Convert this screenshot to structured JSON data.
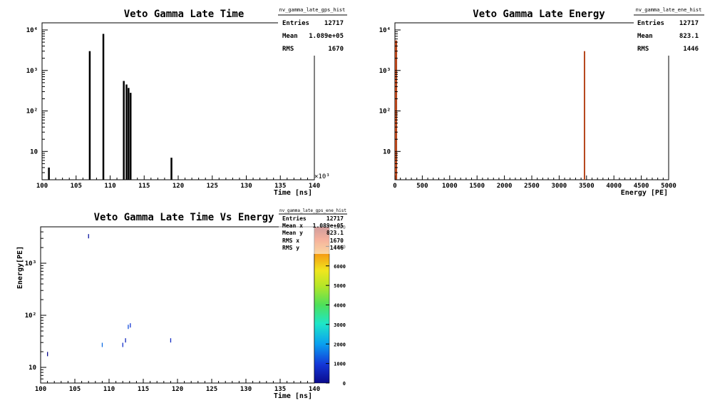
{
  "chart_data": [
    {
      "id": "p1",
      "type": "bar",
      "name": "nv_gamma_late_gps_hist",
      "title": "Veto Gamma Late Time",
      "xlabel": "Time [ns]",
      "x_exponent_label": "×10³",
      "ylabel": "",
      "xlim": [
        100,
        140
      ],
      "ylim": [
        2,
        15000
      ],
      "yscale": "log",
      "xticks": [
        "100",
        "105",
        "110",
        "115",
        "120",
        "125",
        "130",
        "135",
        "140"
      ],
      "yticks": [
        "10",
        "10²",
        "10³",
        "10⁴"
      ],
      "bar_width": 0.25,
      "bar_color": "#000000",
      "values": [
        {
          "x": 101.0,
          "y": 4
        },
        {
          "x": 107.0,
          "y": 3000
        },
        {
          "x": 109.0,
          "y": 8000
        },
        {
          "x": 112.0,
          "y": 550
        },
        {
          "x": 112.4,
          "y": 450
        },
        {
          "x": 112.7,
          "y": 370
        },
        {
          "x": 113.0,
          "y": 280
        },
        {
          "x": 119.0,
          "y": 7
        }
      ],
      "stats": {
        "title": "nv_gamma_late_gps_hist",
        "rows": [
          {
            "label": "Entries",
            "value": "12717"
          },
          {
            "label": "Mean",
            "value": "1.089e+05"
          },
          {
            "label": "RMS",
            "value": "1670"
          }
        ]
      }
    },
    {
      "id": "p2",
      "type": "bar",
      "name": "nv_gamma_late_ene_hist",
      "title": "Veto Gamma Late Energy",
      "xlabel": "Energy [PE]",
      "ylabel": "",
      "xlim": [
        0,
        5000
      ],
      "ylim": [
        2,
        15000
      ],
      "yscale": "log",
      "xticks": [
        "0",
        "500",
        "1000",
        "1500",
        "2000",
        "2500",
        "3000",
        "3500",
        "4000",
        "4500",
        "5000"
      ],
      "yticks": [
        "10",
        "10²",
        "10³",
        "10⁴"
      ],
      "bar_color": "#b5451b",
      "values": [
        {
          "x0": 0,
          "x1": 40,
          "y": 5500
        },
        {
          "x0": 3450,
          "x1": 3470,
          "y": 3000
        }
      ],
      "stats": {
        "title": "nv_gamma_late_ene_hist",
        "rows": [
          {
            "label": "Entries",
            "value": "12717"
          },
          {
            "label": "Mean",
            "value": "823.1"
          },
          {
            "label": "RMS",
            "value": "1446"
          }
        ]
      }
    },
    {
      "id": "p3",
      "type": "heatmap",
      "name": "nv_gamma_late_gps_ene_hist",
      "title": "Veto Gamma Late Time Vs Energy",
      "xlabel": "Time [ns]",
      "ylabel": "Energy[PE]",
      "xlim": [
        100,
        140
      ],
      "ylim": [
        5,
        5000
      ],
      "yscale": "log",
      "xticks": [
        "100",
        "105",
        "110",
        "115",
        "120",
        "125",
        "130",
        "135",
        "140"
      ],
      "yticks": [
        "10",
        "10²",
        "10³"
      ],
      "zlim": [
        0,
        8000
      ],
      "zticks": [
        "0",
        "1000",
        "2000",
        "3000",
        "4000",
        "5000",
        "6000",
        "7000",
        "8000"
      ],
      "points": [
        {
          "x": 101.0,
          "y": 18,
          "z": 5
        },
        {
          "x": 107.0,
          "y": 3300,
          "z": 300
        },
        {
          "x": 109.0,
          "y": 27,
          "z": 1500
        },
        {
          "x": 112.0,
          "y": 27,
          "z": 800
        },
        {
          "x": 112.4,
          "y": 33,
          "z": 600
        },
        {
          "x": 112.8,
          "y": 60,
          "z": 1200
        },
        {
          "x": 113.1,
          "y": 64,
          "z": 900
        },
        {
          "x": 119.0,
          "y": 33,
          "z": 700
        }
      ],
      "stats": {
        "title": "nv_gamma_late_gps_ene_hist",
        "rows": [
          {
            "label": "Entries",
            "value": "12717"
          },
          {
            "label": "Mean x",
            "value": "1.089e+05"
          },
          {
            "label": "Mean y",
            "value": "823.1"
          },
          {
            "label": "RMS x",
            "value": "1670"
          },
          {
            "label": "RMS y",
            "value": "1446"
          }
        ]
      }
    }
  ]
}
